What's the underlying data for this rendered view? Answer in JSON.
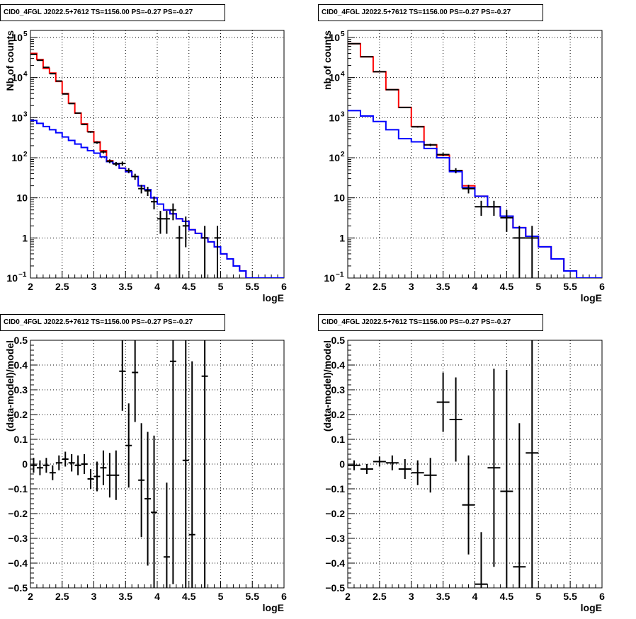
{
  "chart_data": [
    {
      "id": "tl",
      "type": "line",
      "title": "CID0_4FGL J2022.5+7612 TS=1156.00 PS=-0.27 PS=-0.27",
      "xlabel": "logE",
      "ylabel": "Nb of counts",
      "xlim": [
        2,
        6
      ],
      "ylim": [
        0.1,
        150000
      ],
      "yscale": "log",
      "grid": true,
      "xticks": [
        "2",
        "2.5",
        "3",
        "3.5",
        "4",
        "4.5",
        "5",
        "5.5",
        "6"
      ],
      "yticks": [
        {
          "v": 0.1,
          "label": "10",
          "sup": "−1"
        },
        {
          "v": 1,
          "label": "1",
          "sup": ""
        },
        {
          "v": 10,
          "label": "10",
          "sup": ""
        },
        {
          "v": 100,
          "label": "10",
          "sup": "2"
        },
        {
          "v": 1000,
          "label": "10",
          "sup": "3"
        },
        {
          "v": 10000,
          "label": "10",
          "sup": "4"
        },
        {
          "v": 100000,
          "label": "10",
          "sup": "5"
        }
      ],
      "bin_edges": [
        2.0,
        2.1,
        2.2,
        2.3,
        2.4,
        2.5,
        2.6,
        2.7,
        2.8,
        2.9,
        3.0,
        3.1,
        3.2,
        3.3,
        3.4,
        3.5,
        3.6,
        3.7,
        3.8,
        3.9,
        4.0,
        4.1,
        4.2,
        4.3,
        4.4,
        4.5,
        4.6,
        4.7,
        4.8,
        4.9,
        5.0,
        5.1,
        5.2,
        5.3,
        5.4,
        5.5,
        5.6,
        5.7,
        5.8,
        5.9,
        6.0
      ],
      "series": [
        {
          "color": "#ff0000",
          "values": [
            40000,
            28000,
            17000,
            13000,
            8000,
            4000,
            2300,
            1300,
            700,
            450,
            250,
            150,
            85,
            72,
            55,
            45,
            34,
            20,
            16,
            10,
            7,
            5,
            4,
            3,
            2.6,
            1.6,
            1.3,
            1.0,
            0.8,
            0.6,
            0.4,
            0.3,
            0.2,
            0.15,
            0.1,
            0.1,
            0.1,
            0.1,
            0.1,
            0.1
          ]
        },
        {
          "color": "#0000ff",
          "values": [
            850,
            720,
            600,
            500,
            420,
            330,
            270,
            220,
            180,
            150,
            130,
            105,
            80,
            72,
            55,
            45,
            34,
            20,
            16,
            10,
            7,
            5,
            4,
            3,
            2.6,
            1.6,
            1.3,
            1.0,
            0.8,
            0.6,
            0.4,
            0.3,
            0.2,
            0.15,
            0.1,
            0.1,
            0.1,
            0.1,
            0.1,
            0.1
          ]
        }
      ],
      "data_points": [
        {
          "x": 2.05,
          "y": 38000
        },
        {
          "x": 2.15,
          "y": 27000
        },
        {
          "x": 2.25,
          "y": 18000
        },
        {
          "x": 2.35,
          "y": 12500
        },
        {
          "x": 2.45,
          "y": 8200
        },
        {
          "x": 2.55,
          "y": 3900
        },
        {
          "x": 2.65,
          "y": 2250
        },
        {
          "x": 2.75,
          "y": 1300
        },
        {
          "x": 2.85,
          "y": 680
        },
        {
          "x": 2.95,
          "y": 440
        },
        {
          "x": 3.05,
          "y": 240
        },
        {
          "x": 3.15,
          "y": 140
        },
        {
          "x": 3.25,
          "y": 82
        },
        {
          "x": 3.35,
          "y": 70
        },
        {
          "x": 3.45,
          "y": 72
        },
        {
          "x": 3.55,
          "y": 48
        },
        {
          "x": 3.65,
          "y": 34
        },
        {
          "x": 3.75,
          "y": 17
        },
        {
          "x": 3.85,
          "y": 15
        },
        {
          "x": 3.95,
          "y": 8
        },
        {
          "x": 4.05,
          "y": 3
        },
        {
          "x": 4.15,
          "y": 3
        },
        {
          "x": 4.25,
          "y": 5
        },
        {
          "x": 4.35,
          "y": 1
        },
        {
          "x": 4.45,
          "y": 2
        },
        {
          "x": 4.75,
          "y": 1
        },
        {
          "x": 4.95,
          "y": 1
        }
      ]
    },
    {
      "id": "tr",
      "type": "line",
      "title": "CID0_4FGL J2022.5+7612 TS=1156.00 PS=-0.27 PS=-0.27",
      "xlabel": "logE",
      "ylabel": "nb of counts",
      "xlim": [
        2,
        6
      ],
      "ylim": [
        0.1,
        150000
      ],
      "yscale": "log",
      "grid": true,
      "xticks": [
        "2",
        "2.5",
        "3",
        "3.5",
        "4",
        "4.5",
        "5",
        "5.5",
        "6"
      ],
      "yticks": [
        {
          "v": 0.1,
          "label": "10",
          "sup": "−1"
        },
        {
          "v": 1,
          "label": "1",
          "sup": ""
        },
        {
          "v": 10,
          "label": "10",
          "sup": ""
        },
        {
          "v": 100,
          "label": "10",
          "sup": "2"
        },
        {
          "v": 1000,
          "label": "10",
          "sup": "3"
        },
        {
          "v": 10000,
          "label": "10",
          "sup": "4"
        },
        {
          "v": 100000,
          "label": "10",
          "sup": "5"
        }
      ],
      "bin_edges": [
        2.0,
        2.2,
        2.4,
        2.6,
        2.8,
        3.0,
        3.2,
        3.4,
        3.6,
        3.8,
        4.0,
        4.2,
        4.4,
        4.6,
        4.8,
        5.0,
        5.2,
        5.4,
        5.6,
        5.8,
        6.0
      ],
      "series": [
        {
          "color": "#ff0000",
          "values": [
            70000,
            33000,
            14000,
            5000,
            1800,
            600,
            210,
            115,
            48,
            20,
            11,
            6,
            3.5,
            1.8,
            1.1,
            0.6,
            0.3,
            0.15,
            0.1,
            0.1
          ]
        },
        {
          "color": "#0000ff",
          "values": [
            1500,
            1100,
            800,
            500,
            300,
            250,
            170,
            100,
            45,
            18,
            11,
            6,
            3.5,
            1.8,
            1.1,
            0.6,
            0.3,
            0.15,
            0.1,
            0.1
          ]
        }
      ],
      "data_points": [
        {
          "x": 2.1,
          "y": 70000
        },
        {
          "x": 2.3,
          "y": 33000
        },
        {
          "x": 2.5,
          "y": 14000
        },
        {
          "x": 2.7,
          "y": 5000
        },
        {
          "x": 2.9,
          "y": 1800
        },
        {
          "x": 3.1,
          "y": 590
        },
        {
          "x": 3.3,
          "y": 210
        },
        {
          "x": 3.5,
          "y": 120
        },
        {
          "x": 3.7,
          "y": 48
        },
        {
          "x": 3.9,
          "y": 17
        },
        {
          "x": 4.1,
          "y": 6
        },
        {
          "x": 4.3,
          "y": 6
        },
        {
          "x": 4.5,
          "y": 3.2
        },
        {
          "x": 4.7,
          "y": 1
        },
        {
          "x": 4.9,
          "y": 1
        }
      ]
    },
    {
      "id": "bl",
      "type": "scatter",
      "title": "CID0_4FGL J2022.5+7612 TS=1156.00 PS=-0.27 PS=-0.27",
      "xlabel": "logE",
      "ylabel": "(data-model)/model",
      "xlim": [
        2,
        6
      ],
      "ylim": [
        -0.5,
        0.5
      ],
      "yscale": "linear",
      "grid": true,
      "xticks": [
        "2",
        "2.5",
        "3",
        "3.5",
        "4",
        "4.5",
        "5",
        "5.5",
        "6"
      ],
      "yticks": [
        {
          "v": -0.5,
          "label": "−0.5"
        },
        {
          "v": -0.4,
          "label": "−0.4"
        },
        {
          "v": -0.3,
          "label": "−0.3"
        },
        {
          "v": -0.2,
          "label": "−0.2"
        },
        {
          "v": -0.1,
          "label": "−0.1"
        },
        {
          "v": 0,
          "label": "0"
        },
        {
          "v": 0.1,
          "label": "0.1"
        },
        {
          "v": 0.2,
          "label": "0.2"
        },
        {
          "v": 0.3,
          "label": "0.3"
        },
        {
          "v": 0.4,
          "label": "0.4"
        },
        {
          "v": 0.5,
          "label": "0.5"
        }
      ],
      "half_width": 0.05,
      "points": [
        {
          "x": 2.05,
          "y": -0.005,
          "err": 0.03
        },
        {
          "x": 2.15,
          "y": -0.015,
          "err": 0.03
        },
        {
          "x": 2.25,
          "y": -0.005,
          "err": 0.03
        },
        {
          "x": 2.35,
          "y": -0.035,
          "err": 0.03
        },
        {
          "x": 2.45,
          "y": 0.005,
          "err": 0.03
        },
        {
          "x": 2.55,
          "y": 0.02,
          "err": 0.03
        },
        {
          "x": 2.65,
          "y": 0.005,
          "err": 0.035
        },
        {
          "x": 2.75,
          "y": -0.005,
          "err": 0.04
        },
        {
          "x": 2.85,
          "y": 0.0,
          "err": 0.04
        },
        {
          "x": 2.95,
          "y": -0.06,
          "err": 0.04
        },
        {
          "x": 3.05,
          "y": -0.05,
          "err": 0.06
        },
        {
          "x": 3.15,
          "y": -0.015,
          "err": 0.07
        },
        {
          "x": 3.25,
          "y": -0.045,
          "err": 0.09
        },
        {
          "x": 3.35,
          "y": -0.045,
          "err": 0.1
        },
        {
          "x": 3.45,
          "y": 0.375,
          "err": 0.16
        },
        {
          "x": 3.55,
          "y": 0.075,
          "err": 0.17
        },
        {
          "x": 3.65,
          "y": 0.37,
          "err": 0.2
        },
        {
          "x": 3.75,
          "y": -0.065,
          "err": 0.23
        },
        {
          "x": 3.85,
          "y": -0.14,
          "err": 0.27
        },
        {
          "x": 3.95,
          "y": -0.195,
          "err": 0.31
        },
        {
          "x": 4.15,
          "y": -0.375,
          "err": 0.3
        },
        {
          "x": 4.25,
          "y": 0.415,
          "err": 0.9
        },
        {
          "x": 4.45,
          "y": 0.015,
          "err": 1.0
        },
        {
          "x": 4.55,
          "y": -0.285,
          "err": 0.7
        },
        {
          "x": 4.75,
          "y": 0.355,
          "err": 1.0
        }
      ]
    },
    {
      "id": "br",
      "type": "scatter",
      "title": "CID0_4FGL J2022.5+7612 TS=1156.00 PS=-0.27 PS=-0.27",
      "xlabel": "logE",
      "ylabel": "(data-model)/model",
      "xlim": [
        2,
        6
      ],
      "ylim": [
        -0.5,
        0.5
      ],
      "yscale": "linear",
      "grid": true,
      "xticks": [
        "2",
        "2.5",
        "3",
        "3.5",
        "4",
        "4.5",
        "5",
        "5.5",
        "6"
      ],
      "yticks": [
        {
          "v": -0.5,
          "label": "−0.5"
        },
        {
          "v": -0.4,
          "label": "−0.4"
        },
        {
          "v": -0.3,
          "label": "−0.3"
        },
        {
          "v": -0.2,
          "label": "−0.2"
        },
        {
          "v": -0.1,
          "label": "−0.1"
        },
        {
          "v": 0,
          "label": "0"
        },
        {
          "v": 0.1,
          "label": "0.1"
        },
        {
          "v": 0.2,
          "label": "0.2"
        },
        {
          "v": 0.3,
          "label": "0.3"
        },
        {
          "v": 0.4,
          "label": "0.4"
        },
        {
          "v": 0.5,
          "label": "0.5"
        }
      ],
      "half_width": 0.1,
      "points": [
        {
          "x": 2.1,
          "y": -0.005,
          "err": 0.02
        },
        {
          "x": 2.3,
          "y": -0.02,
          "err": 0.02
        },
        {
          "x": 2.5,
          "y": 0.01,
          "err": 0.02
        },
        {
          "x": 2.7,
          "y": 0.005,
          "err": 0.03
        },
        {
          "x": 2.9,
          "y": -0.02,
          "err": 0.04
        },
        {
          "x": 3.1,
          "y": -0.035,
          "err": 0.05
        },
        {
          "x": 3.3,
          "y": -0.045,
          "err": 0.07
        },
        {
          "x": 3.5,
          "y": 0.25,
          "err": 0.12
        },
        {
          "x": 3.7,
          "y": 0.18,
          "err": 0.17
        },
        {
          "x": 3.9,
          "y": -0.165,
          "err": 0.2
        },
        {
          "x": 4.1,
          "y": -0.485,
          "err": 0.21
        },
        {
          "x": 4.3,
          "y": -0.015,
          "err": 0.4
        },
        {
          "x": 4.5,
          "y": -0.11,
          "err": 0.49
        },
        {
          "x": 4.7,
          "y": -0.415,
          "err": 0.58
        },
        {
          "x": 4.9,
          "y": 0.045,
          "err": 0.9
        }
      ]
    }
  ]
}
